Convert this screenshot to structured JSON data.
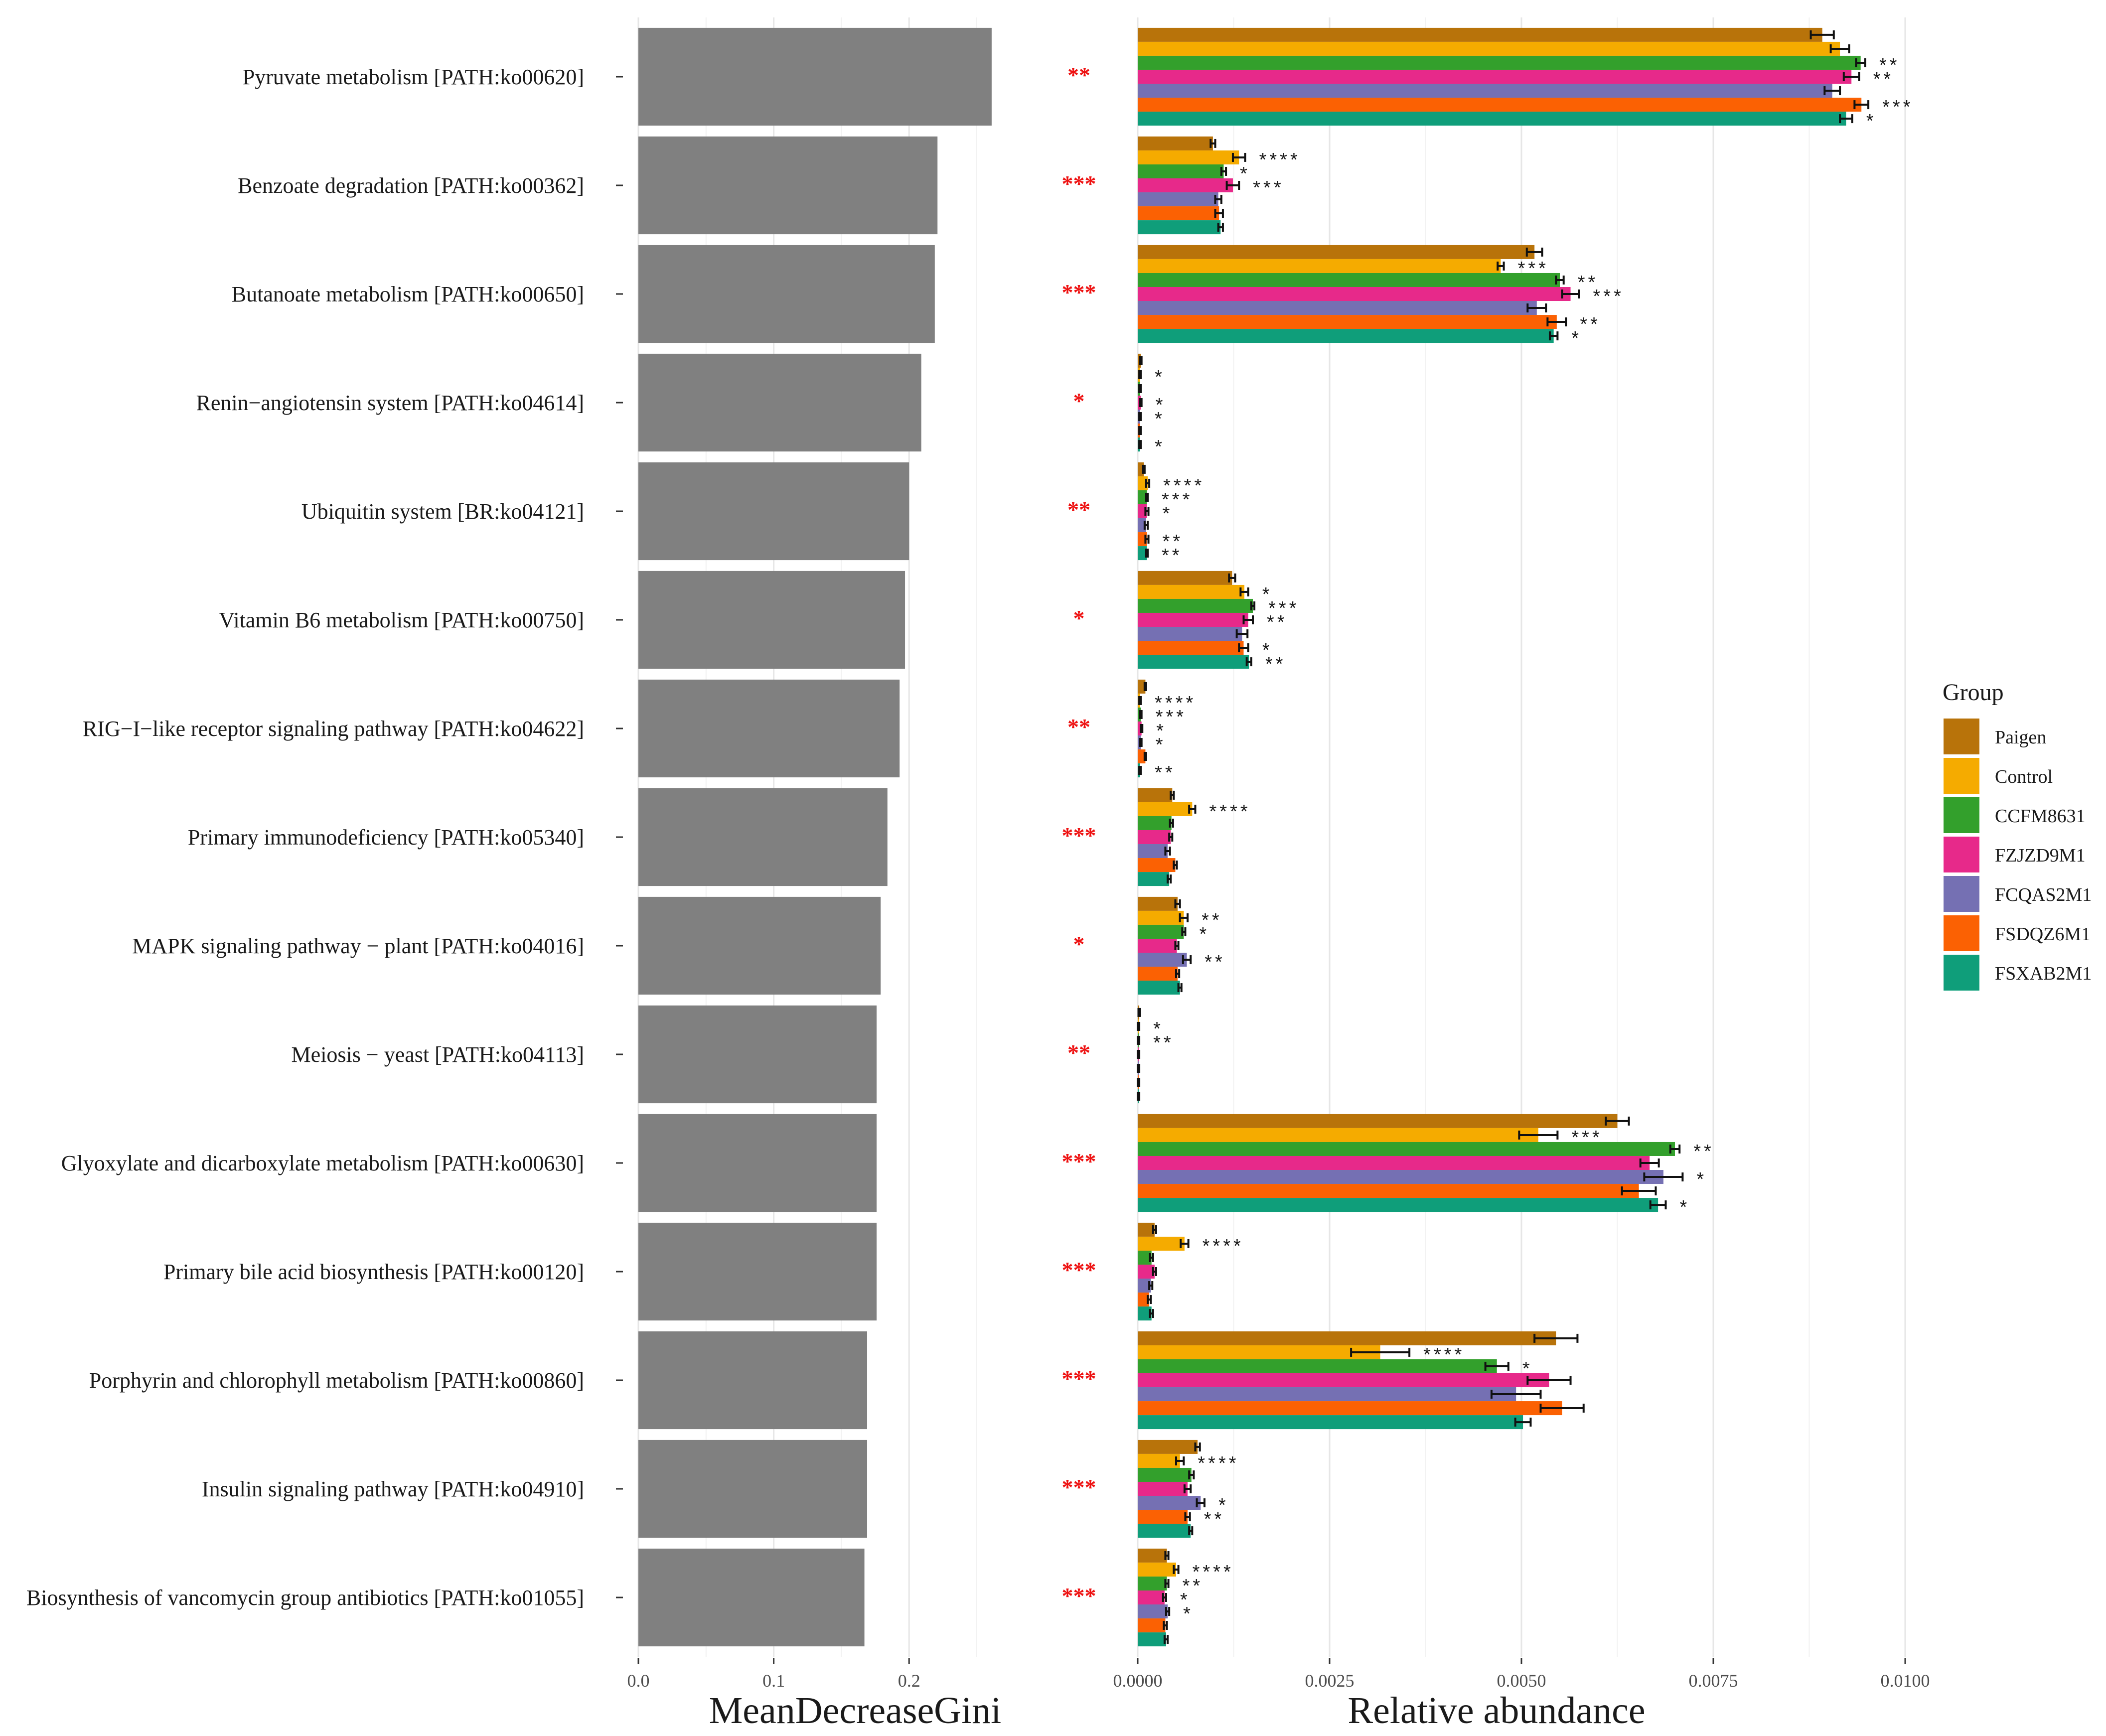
{
  "chart_data": [
    {
      "type": "bar",
      "orientation": "horizontal",
      "title": "",
      "xlabel": "MeanDecreaseGini",
      "xlim": [
        0,
        0.3
      ],
      "xticks": [
        "0.0",
        "0.1",
        "0.2"
      ],
      "tick_values": [
        0,
        0.1,
        0.2
      ],
      "categories": [
        "Pyruvate metabolism [PATH:ko00620]",
        "Benzoate degradation [PATH:ko00362]",
        "Butanoate metabolism [PATH:ko00650]",
        "Renin−angiotensin system [PATH:ko04614]",
        "Ubiquitin system [BR:ko04121]",
        "Vitamin B6 metabolism [PATH:ko00750]",
        "RIG−I−like receptor signaling pathway [PATH:ko04622]",
        "Primary immunodeficiency [PATH:ko05340]",
        "MAPK signaling pathway − plant [PATH:ko04016]",
        "Meiosis − yeast [PATH:ko04113]",
        "Glyoxylate and dicarboxylate metabolism [PATH:ko00630]",
        "Primary bile acid biosynthesis [PATH:ko00120]",
        "Porphyrin and chlorophyll metabolism [PATH:ko00860]",
        "Insulin signaling pathway [PATH:ko04910]",
        "Biosynthesis of vancomycin group antibiotics [PATH:ko01055]"
      ],
      "values": [
        0.261,
        0.221,
        0.219,
        0.209,
        0.2,
        0.197,
        0.193,
        0.184,
        0.179,
        0.176,
        0.176,
        0.176,
        0.169,
        0.169,
        0.167
      ],
      "bar_color": "#808080",
      "significance": [
        "**",
        "***",
        "***",
        "*",
        "**",
        "*",
        "**",
        "***",
        "*",
        "**",
        "***",
        "***",
        "***",
        "***",
        "***"
      ],
      "significance_color": "#ee1111"
    },
    {
      "type": "bar",
      "orientation": "horizontal",
      "grouped": true,
      "title": "",
      "xlabel": "Relative abundance",
      "xlim": [
        0,
        0.01
      ],
      "xticks": [
        "0.0000",
        "0.0025",
        "0.0050",
        "0.0075",
        "0.0100"
      ],
      "tick_values": [
        0,
        0.0025,
        0.005,
        0.0075,
        0.01
      ],
      "legend": {
        "title": "Group",
        "position": "right"
      },
      "series": [
        {
          "name": "Paigen",
          "color": "#b8730a",
          "values": [
            0.00892,
            0.00098,
            0.00517,
            4e-05,
            8e-05,
            0.00123,
            0.0001,
            0.00045,
            0.00052,
            2e-05,
            0.00625,
            0.00022,
            0.00545,
            0.00078,
            0.00038
          ],
          "errors": [
            0.00015,
            3e-05,
            0.0001,
            1e-05,
            1e-05,
            4e-05,
            1e-05,
            2e-05,
            3e-05,
            1e-05,
            0.00015,
            2e-05,
            0.00028,
            3e-05,
            2e-05
          ],
          "stars": [
            "",
            "",
            "",
            "",
            "",
            "",
            "",
            "",
            "",
            "",
            "",
            "",
            "",
            "",
            ""
          ]
        },
        {
          "name": "Control",
          "color": "#f5ab00",
          "values": [
            0.00915,
            0.00132,
            0.00473,
            3e-05,
            0.00013,
            0.00139,
            3e-05,
            0.00071,
            0.0006,
            1e-05,
            0.00522,
            0.00061,
            0.00316,
            0.00055,
            0.0005
          ],
          "errors": [
            0.00012,
            8e-05,
            4e-05,
            1e-05,
            2e-05,
            5e-05,
            1e-05,
            4e-05,
            5e-05,
            1e-05,
            0.00025,
            5e-05,
            0.00038,
            5e-05,
            3e-05
          ],
          "stars": [
            "",
            "****",
            "***",
            "*",
            "****",
            "*",
            "****",
            "****",
            "**",
            "*",
            "***",
            "****",
            "****",
            "****",
            "****"
          ]
        },
        {
          "name": "CCFM8631",
          "color": "#33a02c",
          "values": [
            0.00942,
            0.00112,
            0.0055,
            3e-05,
            0.00012,
            0.0015,
            4e-05,
            0.00044,
            0.0006,
            1e-05,
            0.007,
            0.00018,
            0.00468,
            0.0007,
            0.00038
          ],
          "errors": [
            6e-05,
            3e-05,
            5e-05,
            1e-05,
            1e-05,
            2e-05,
            1e-05,
            2e-05,
            2e-05,
            1e-05,
            6e-05,
            2e-05,
            0.00015,
            3e-05,
            2e-05
          ],
          "stars": [
            "**",
            "*",
            "**",
            "",
            "***",
            "***",
            "***",
            "",
            "*",
            "**",
            "**",
            "",
            "*",
            "",
            "**"
          ]
        },
        {
          "name": "FZJZD9M1",
          "color": "#e7298a",
          "values": [
            0.0093,
            0.00124,
            0.00564,
            4e-05,
            0.00012,
            0.00144,
            5e-05,
            0.00043,
            0.00051,
            1e-05,
            0.00667,
            0.00022,
            0.00536,
            0.00065,
            0.00035
          ],
          "errors": [
            0.0001,
            8e-05,
            0.00011,
            1e-05,
            2e-05,
            6e-05,
            1e-05,
            2e-05,
            2e-05,
            1e-05,
            0.00012,
            2e-05,
            0.00028,
            4e-05,
            2e-05
          ],
          "stars": [
            "**",
            "***",
            "***",
            "*",
            "*",
            "**",
            "*",
            "",
            "",
            "",
            "",
            "",
            "",
            "",
            "*"
          ]
        },
        {
          "name": "FCQAS2M1",
          "color": "#7570b3",
          "values": [
            0.00905,
            0.00105,
            0.0052,
            3e-05,
            0.00011,
            0.00136,
            4e-05,
            0.00039,
            0.00064,
            1e-05,
            0.00685,
            0.00017,
            0.00493,
            0.00082,
            0.00039
          ],
          "errors": [
            0.0001,
            4e-05,
            0.00012,
            1e-05,
            2e-05,
            7e-05,
            1e-05,
            3e-05,
            5e-05,
            1e-05,
            0.00025,
            2e-05,
            0.00032,
            5e-05,
            2e-05
          ],
          "stars": [
            "",
            "",
            "",
            "*",
            "",
            "",
            "*",
            "",
            "**",
            "",
            "*",
            "",
            "",
            "*",
            "*"
          ]
        },
        {
          "name": "FSDQZ6M1",
          "color": "#fb6103",
          "values": [
            0.00943,
            0.00106,
            0.00546,
            3e-05,
            0.00012,
            0.00138,
            0.0001,
            0.00049,
            0.00052,
            1e-05,
            0.00653,
            0.00015,
            0.00553,
            0.00065,
            0.00036
          ],
          "errors": [
            9e-05,
            5e-05,
            0.00012,
            1e-05,
            2e-05,
            6e-05,
            1e-05,
            2e-05,
            2e-05,
            1e-05,
            0.00022,
            2e-05,
            0.00028,
            3e-05,
            2e-05
          ],
          "stars": [
            "***",
            "",
            "**",
            "",
            "**",
            "*",
            "",
            "",
            "",
            "",
            "",
            "",
            "",
            "**",
            ""
          ]
        },
        {
          "name": "FSXAB2M1",
          "color": "#0f9e7a",
          "values": [
            0.00923,
            0.00108,
            0.00542,
            3e-05,
            0.00012,
            0.00145,
            3e-05,
            0.00041,
            0.00055,
            1e-05,
            0.00678,
            0.00018,
            0.00502,
            0.00069,
            0.00037
          ],
          "errors": [
            8e-05,
            3e-05,
            5e-05,
            1e-05,
            1e-05,
            3e-05,
            1e-05,
            2e-05,
            2e-05,
            1e-05,
            0.0001,
            2e-05,
            0.0001,
            2e-05,
            2e-05
          ],
          "stars": [
            "*",
            "",
            "*",
            "*",
            "**",
            "**",
            "**",
            "",
            "",
            "",
            "*",
            "",
            "",
            "",
            ""
          ]
        }
      ]
    }
  ]
}
